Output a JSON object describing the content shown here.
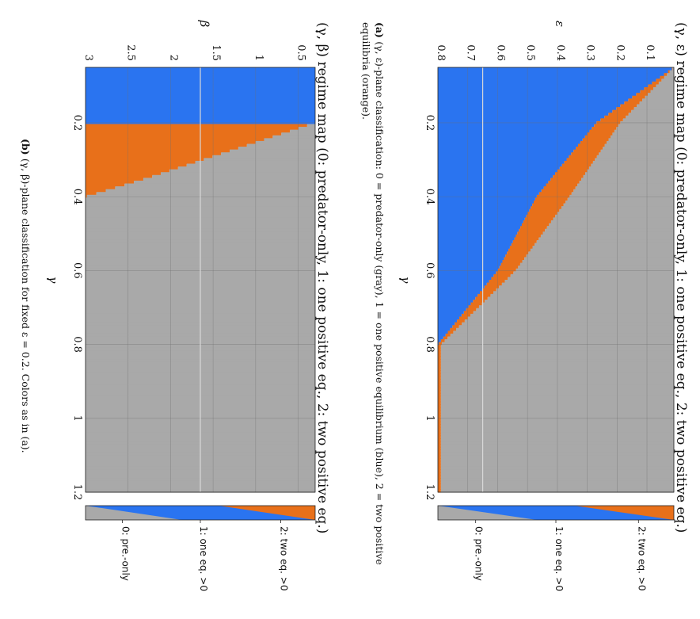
{
  "colors": {
    "blue": "#2a74f0",
    "orange": "#e8701a",
    "gray": "#a9a9a9",
    "grid": "#6f6f6f",
    "marker": "#d8d8d8"
  },
  "chart_data": [
    {
      "type": "heatmap",
      "title": "(γ, ε) regime map (0: predator-only, 1: one positive eq., 2: two positive eq.)",
      "xlabel": "γ",
      "ylabel": "ε",
      "xlim": [
        0.05,
        1.2
      ],
      "ylim": [
        0.01,
        0.8
      ],
      "xticks": [
        "0.2",
        "0.4",
        "0.6",
        "0.8",
        "1",
        "1.2"
      ],
      "yticks": [
        "0.1",
        "0.2",
        "0.3",
        "0.4",
        "0.5",
        "0.6",
        "0.7",
        "0.8"
      ],
      "boundaries": {
        "gray_upper": {
          "gamma": [
            0.05,
            0.2,
            0.4,
            0.6,
            0.8
          ],
          "epsilon": [
            0.01,
            0.19,
            0.36,
            0.54,
            0.79
          ]
        },
        "orange_upper": {
          "gamma": [
            0.05,
            0.2,
            0.4,
            0.6,
            0.8
          ],
          "epsilon": [
            0.01,
            0.27,
            0.47,
            0.6,
            0.8
          ]
        }
      },
      "reference_line_y": 0.65,
      "colorbar": {
        "labels": [
          "2: two eq. >0",
          "1: one eq. >0",
          "0: pre.-only"
        ]
      },
      "caption_label": "(a)",
      "caption": "(γ, ε)-plane classification: 0 = predator-only (gray), 1 = one positive equilibrium (blue), 2 = two positive equilibria (orange)."
    },
    {
      "type": "heatmap",
      "title": "(γ, β) regime map (0: predator-only, 1: one positive eq., 2: two positive eq.)",
      "xlabel": "γ",
      "ylabel": "β",
      "xlim": [
        0.05,
        1.2
      ],
      "ylim": [
        0.3,
        3
      ],
      "xticks": [
        "0.2",
        "0.4",
        "0.6",
        "0.8",
        "1",
        "1.2"
      ],
      "yticks": [
        "0.5",
        "1",
        "1.5",
        "2",
        "2.5",
        "3"
      ],
      "boundaries": {
        "gray_upper": {
          "gamma": [
            0.2,
            0.25,
            0.3,
            0.35,
            0.4
          ],
          "beta": [
            0.3,
            0.96,
            1.62,
            2.28,
            3.0
          ]
        },
        "blue_below_gamma": 0.2
      },
      "reference_line_y": 1.65,
      "colorbar": {
        "labels": [
          "2: two eq. >0",
          "1: one eq. >0",
          "0: pre.-only"
        ]
      },
      "caption_label": "(b)",
      "caption": "(γ, β)-plane classification for fixed ε = 0.2. Colors as in (a)."
    }
  ]
}
